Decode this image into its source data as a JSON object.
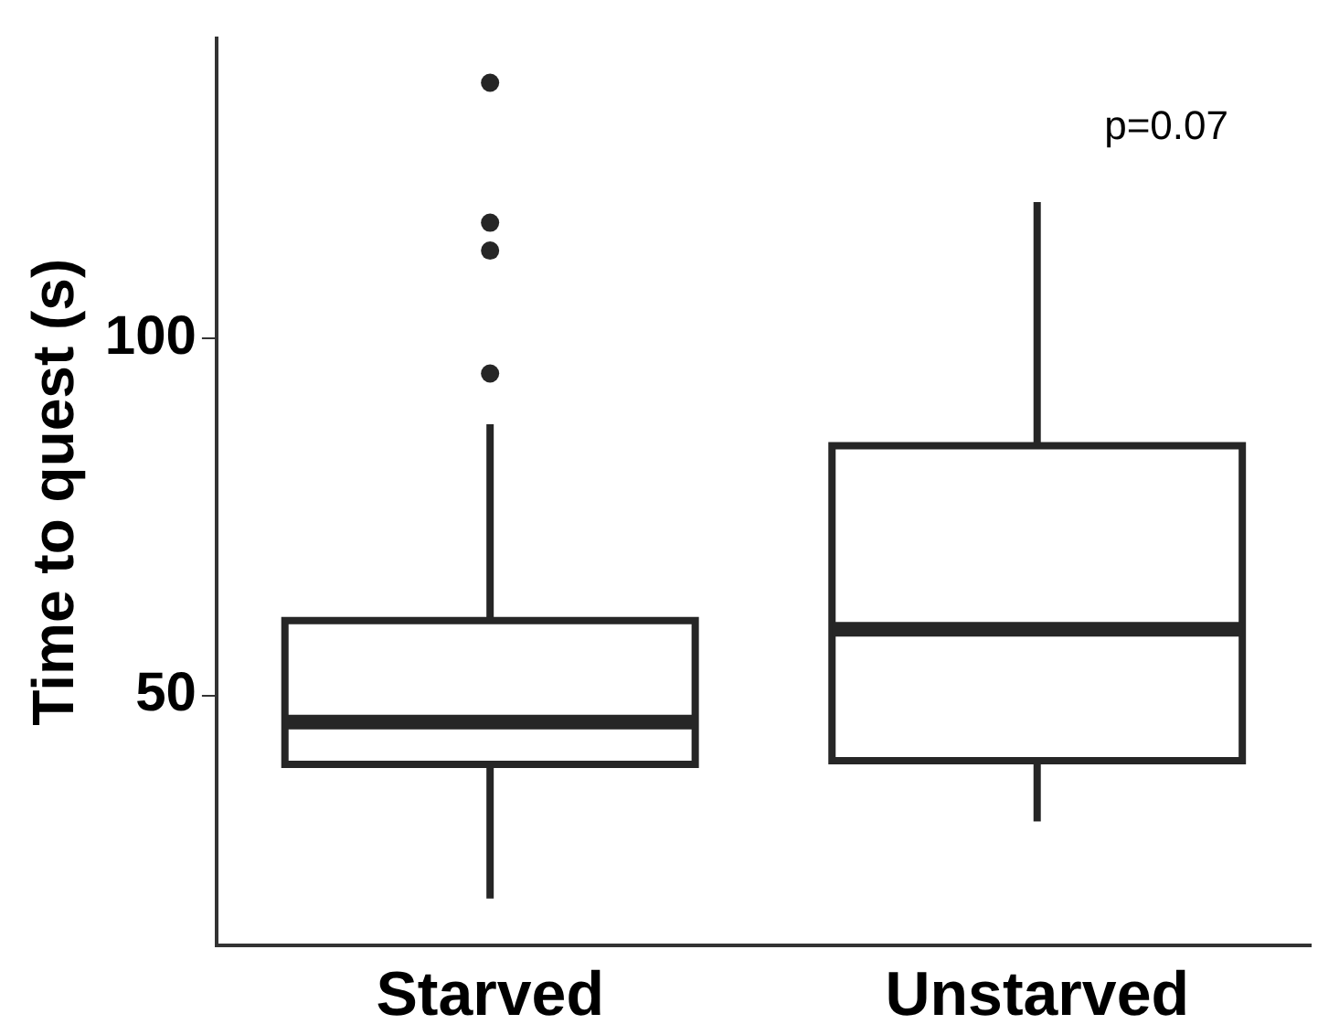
{
  "chart_data": {
    "type": "box",
    "ylabel": "Time to quest (s)",
    "categories": [
      "Starved",
      "Unstarved"
    ],
    "boxes": [
      {
        "low": 21.6,
        "q1": 40.4,
        "median": 46.3,
        "q3": 60.5,
        "high": 88,
        "outliers": [
          95.1,
          112.3,
          116.2,
          135.8
        ]
      },
      {
        "low": 32.4,
        "q1": 40.9,
        "median": 59.3,
        "q3": 85,
        "high": 119.1
      }
    ],
    "color": "#262626",
    "ylim": [
      15,
      142
    ],
    "yticks": [
      50,
      100
    ],
    "grid": false,
    "legend": false,
    "annotations": [
      "p=0.07"
    ]
  }
}
